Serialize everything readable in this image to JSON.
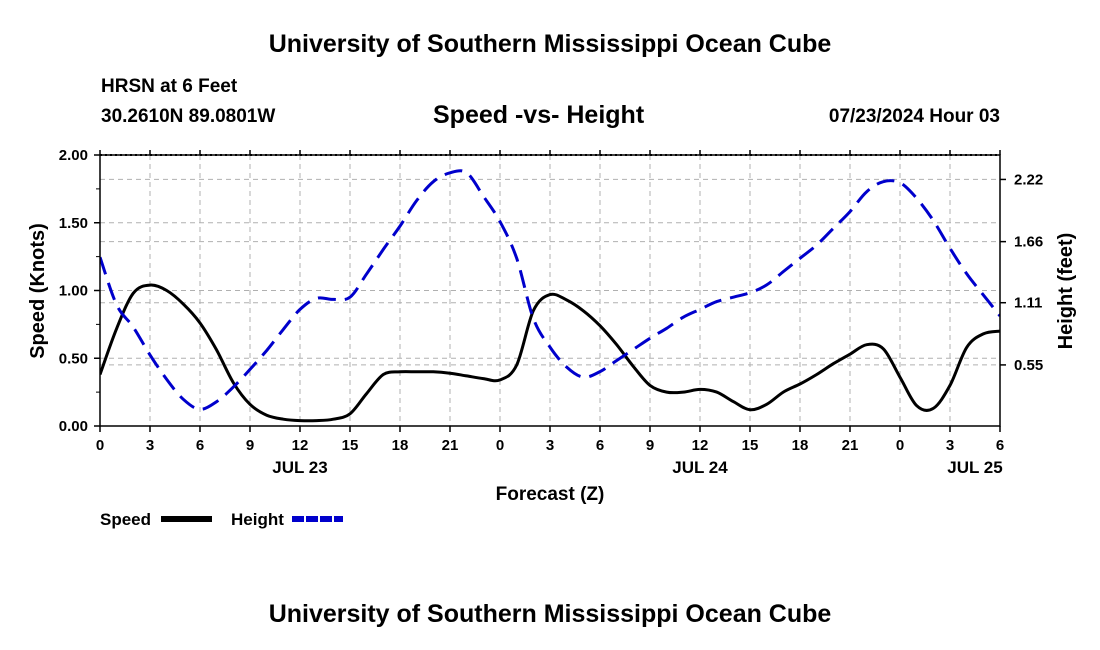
{
  "header": {
    "title": "University of Southern Mississippi Ocean Cube",
    "station": "HRSN at 6 Feet",
    "coords": "30.2610N  89.0801W",
    "subtitle": "Speed -vs- Height",
    "datetime": "07/23/2024 Hour 03"
  },
  "footer": {
    "title": "University of Southern Mississippi Ocean Cube"
  },
  "colors": {
    "speed": "#000000",
    "height": "#0000cc",
    "grid": "#b0b0b0"
  },
  "chart_data": {
    "type": "line",
    "title": "Speed -vs- Height",
    "xlabel": "Forecast (Z)",
    "ylabel": "Speed (Knots)",
    "y2label": "Height (feet)",
    "xlim": [
      0,
      54
    ],
    "ylim": [
      0,
      2.0
    ],
    "y2lim": [
      0,
      2.44
    ],
    "x_ticks": [
      0,
      3,
      6,
      9,
      12,
      15,
      18,
      21,
      24,
      27,
      30,
      33,
      36,
      39,
      42,
      45,
      48,
      51,
      54
    ],
    "x_tick_labels": [
      "0",
      "3",
      "6",
      "9",
      "12",
      "15",
      "18",
      "21",
      "0",
      "3",
      "6",
      "9",
      "12",
      "15",
      "18",
      "21",
      "0",
      "3",
      "6"
    ],
    "date_labels": [
      {
        "x": 12,
        "label": "JUL 23"
      },
      {
        "x": 36,
        "label": "JUL 24"
      },
      {
        "x": 52.5,
        "label": "JUL 25"
      }
    ],
    "y_ticks": [
      0,
      0.5,
      1.0,
      1.5,
      2.0
    ],
    "y_tick_labels": [
      "0.00",
      "0.50",
      "1.00",
      "1.50",
      "2.00"
    ],
    "y2_ticks": [
      0.55,
      1.11,
      1.66,
      2.22
    ],
    "y2_tick_labels": [
      "0.55",
      "1.11",
      "1.66",
      "2.22"
    ],
    "legend": [
      {
        "name": "Speed",
        "style": "solid"
      },
      {
        "name": "Height",
        "style": "dashed"
      }
    ],
    "series": [
      {
        "name": "Speed",
        "axis": "left",
        "style": "solid",
        "x": [
          0,
          1,
          2,
          3,
          4,
          5,
          6,
          7,
          8,
          9,
          10,
          11,
          12,
          13,
          14,
          15,
          16,
          17,
          18,
          19,
          20,
          21,
          22,
          23,
          24,
          25,
          26,
          27,
          28,
          29,
          30,
          31,
          32,
          33,
          34,
          35,
          36,
          37,
          38,
          39,
          40,
          41,
          42,
          43,
          44,
          45,
          46,
          47,
          48,
          49,
          50,
          51,
          52,
          53,
          54
        ],
        "values": [
          0.38,
          0.72,
          0.98,
          1.04,
          1.0,
          0.9,
          0.76,
          0.56,
          0.32,
          0.16,
          0.08,
          0.05,
          0.04,
          0.04,
          0.05,
          0.09,
          0.24,
          0.38,
          0.4,
          0.4,
          0.4,
          0.39,
          0.37,
          0.35,
          0.34,
          0.45,
          0.85,
          0.97,
          0.93,
          0.85,
          0.74,
          0.6,
          0.44,
          0.3,
          0.25,
          0.25,
          0.27,
          0.25,
          0.18,
          0.12,
          0.16,
          0.25,
          0.31,
          0.38,
          0.46,
          0.53,
          0.6,
          0.57,
          0.36,
          0.15,
          0.13,
          0.3,
          0.58,
          0.68,
          0.7
        ]
      },
      {
        "name": "Height",
        "axis": "right",
        "style": "dashed",
        "x": [
          0,
          1,
          2,
          3,
          4,
          5,
          6,
          7,
          8,
          9,
          10,
          11,
          12,
          13,
          14,
          15,
          16,
          17,
          18,
          19,
          20,
          21,
          22,
          23,
          24,
          25,
          26,
          27,
          28,
          29,
          30,
          31,
          32,
          33,
          34,
          35,
          36,
          37,
          38,
          39,
          40,
          41,
          42,
          43,
          44,
          45,
          46,
          47,
          48,
          49,
          50,
          51,
          52,
          53,
          54
        ],
        "values": [
          1.52,
          1.09,
          0.89,
          0.64,
          0.42,
          0.24,
          0.15,
          0.22,
          0.35,
          0.51,
          0.68,
          0.87,
          1.05,
          1.15,
          1.14,
          1.16,
          1.37,
          1.59,
          1.8,
          2.03,
          2.2,
          2.28,
          2.28,
          2.07,
          1.84,
          1.51,
          0.97,
          0.71,
          0.53,
          0.44,
          0.49,
          0.59,
          0.69,
          0.79,
          0.88,
          0.98,
          1.05,
          1.12,
          1.16,
          1.2,
          1.27,
          1.39,
          1.51,
          1.63,
          1.78,
          1.93,
          2.11,
          2.2,
          2.19,
          2.05,
          1.85,
          1.6,
          1.37,
          1.18,
          0.99
        ]
      }
    ]
  }
}
